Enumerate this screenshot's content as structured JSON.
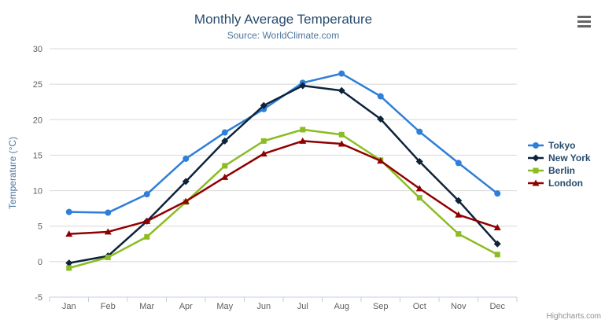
{
  "chart_data": {
    "type": "line",
    "title": "Monthly Average Temperature",
    "subtitle": "Source: WorldClimate.com",
    "xlabel": "",
    "ylabel": "Temperature (°C)",
    "categories": [
      "Jan",
      "Feb",
      "Mar",
      "Apr",
      "May",
      "Jun",
      "Jul",
      "Aug",
      "Sep",
      "Oct",
      "Nov",
      "Dec"
    ],
    "yticks": [
      -5,
      0,
      5,
      10,
      15,
      20,
      25,
      30
    ],
    "ylim": [
      -5,
      30
    ],
    "grid": true,
    "legend_position": "right",
    "series": [
      {
        "name": "Tokyo",
        "color": "#2f7ed8",
        "marker": "circle",
        "values": [
          7.0,
          6.9,
          9.5,
          14.5,
          18.2,
          21.5,
          25.2,
          26.5,
          23.3,
          18.3,
          13.9,
          9.6
        ]
      },
      {
        "name": "New York",
        "color": "#0d233a",
        "marker": "diamond",
        "values": [
          -0.2,
          0.8,
          5.7,
          11.3,
          17.0,
          22.0,
          24.8,
          24.1,
          20.1,
          14.1,
          8.6,
          2.5
        ]
      },
      {
        "name": "Berlin",
        "color": "#8bbc21",
        "marker": "square",
        "values": [
          -0.9,
          0.6,
          3.5,
          8.4,
          13.5,
          17.0,
          18.6,
          17.9,
          14.3,
          9.0,
          3.9,
          1.0
        ]
      },
      {
        "name": "London",
        "color": "#910000",
        "marker": "triangle",
        "values": [
          3.9,
          4.2,
          5.7,
          8.5,
          11.9,
          15.2,
          17.0,
          16.6,
          14.2,
          10.3,
          6.6,
          4.8
        ]
      }
    ]
  },
  "credits": "Highcharts.com",
  "colors": {
    "title": "#274b6d",
    "subtitle": "#4d759e",
    "axis_label": "#606060",
    "axis_line": "#c0d0e0",
    "gridline": "#d8d8d8",
    "legend_text": "#274b6d",
    "credits": "#909090",
    "menu_icon": "#666666",
    "background": "#ffffff"
  }
}
